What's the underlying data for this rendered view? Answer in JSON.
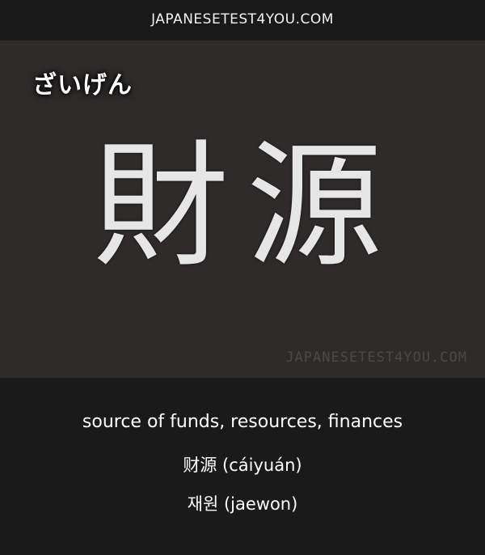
{
  "header": {
    "site": "JAPANESETEST4YOU.COM"
  },
  "card": {
    "reading": "ざいげん",
    "kanji": "財源",
    "watermark": "JAPANESETEST4YOU.COM"
  },
  "meanings": {
    "english": "source of funds, resources, finances",
    "chinese": "财源 (cáiyuán)",
    "korean": "재원 (jaewon)"
  },
  "colors": {
    "header_bg": "#1a1919",
    "card_bg": "#2f2b2b",
    "footer_bg": "#1b1a1a",
    "text": "#ffffff"
  }
}
